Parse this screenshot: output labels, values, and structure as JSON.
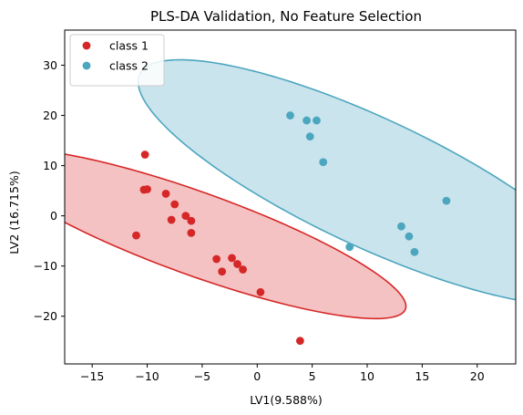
{
  "chart_data": {
    "type": "scatter",
    "title": "PLS-DA Validation, No Feature Selection",
    "xlabel": "LV1(9.588%)",
    "ylabel": "LV2 (16.715%)",
    "xlim": [
      -17.5,
      23.5
    ],
    "ylim": [
      -29.5,
      37
    ],
    "xticks": [
      -15,
      -10,
      -5,
      0,
      5,
      10,
      15,
      20
    ],
    "yticks": [
      -20,
      -10,
      0,
      10,
      20,
      30
    ],
    "grid": false,
    "legend_position": "upper-left",
    "series": [
      {
        "name": "class 1",
        "color": "#d62728",
        "fill_color": "#f4c2c2",
        "points": [
          [
            -10.2,
            12.2
          ],
          [
            -10.3,
            5.2
          ],
          [
            -10.0,
            5.3
          ],
          [
            -8.3,
            4.4
          ],
          [
            -7.5,
            2.3
          ],
          [
            -7.8,
            -0.8
          ],
          [
            -6.5,
            0.0
          ],
          [
            -6.0,
            -1.0
          ],
          [
            -6.0,
            -3.4
          ],
          [
            -11.0,
            -3.9
          ],
          [
            -3.7,
            -8.6
          ],
          [
            -2.3,
            -8.4
          ],
          [
            -1.8,
            -9.6
          ],
          [
            -1.3,
            -10.7
          ],
          [
            -3.2,
            -11.1
          ],
          [
            0.3,
            -15.2
          ],
          [
            3.9,
            -24.9
          ]
        ],
        "ellipse": {
          "cx": -5.5,
          "cy": -3.6,
          "semi_major": 24.5,
          "semi_minor": 6.8,
          "angle_deg": -41
        }
      },
      {
        "name": "class 2",
        "color": "#4da6bf",
        "fill_color": "#c9e4ec",
        "points": [
          [
            3.0,
            20.0
          ],
          [
            4.5,
            19.0
          ],
          [
            5.4,
            19.0
          ],
          [
            4.8,
            15.8
          ],
          [
            6.0,
            10.7
          ],
          [
            8.4,
            -6.2
          ],
          [
            13.1,
            -2.1
          ],
          [
            13.8,
            -4.1
          ],
          [
            14.3,
            -7.2
          ],
          [
            17.2,
            3.0
          ]
        ],
        "ellipse": {
          "cx": 10.3,
          "cy": 6.7,
          "semi_major": 30.8,
          "semi_minor": 9.6,
          "angle_deg": -50
        }
      }
    ]
  }
}
